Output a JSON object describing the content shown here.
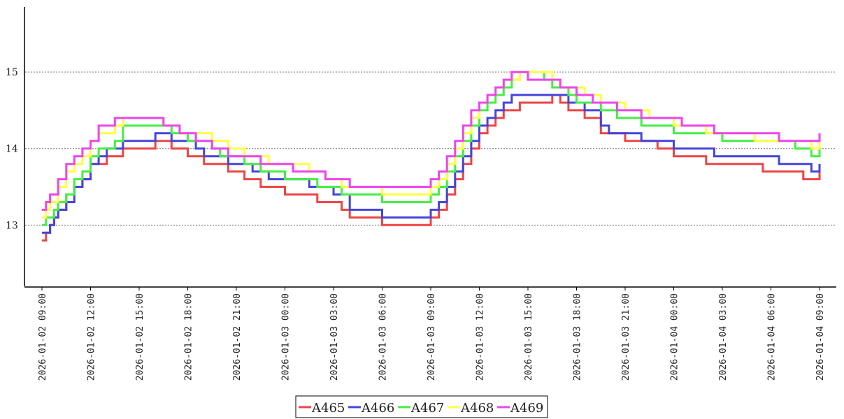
{
  "chart_data": {
    "type": "line",
    "step": true,
    "title": "",
    "xlabel": "",
    "ylabel": "",
    "ylim": [
      12.2,
      15.85
    ],
    "xlim": [
      "2026-01-02 09:00",
      "2026-01-04 09:00"
    ],
    "grid": "horizontal-dotted",
    "legend_position": "bottom-center",
    "x_ticks": [
      "2026-01-02 09:00",
      "2026-01-02 12:00",
      "2026-01-02 15:00",
      "2026-01-02 18:00",
      "2026-01-02 21:00",
      "2026-01-03 00:00",
      "2026-01-03 03:00",
      "2026-01-03 06:00",
      "2026-01-03 09:00",
      "2026-01-03 12:00",
      "2026-01-03 15:00",
      "2026-01-03 18:00",
      "2026-01-03 21:00",
      "2026-01-04 00:00",
      "2026-01-04 03:00",
      "2026-01-04 06:00",
      "2026-01-04 09:00"
    ],
    "y_ticks": [
      "13",
      "14",
      "15"
    ],
    "series": [
      {
        "name": "A465",
        "color": "#ee4444",
        "x": [
          "2026-01-02 09:00",
          "2026-01-02 09:15",
          "2026-01-02 09:30",
          "2026-01-02 09:45",
          "2026-01-02 10:00",
          "2026-01-02 10:30",
          "2026-01-02 11:00",
          "2026-01-02 11:30",
          "2026-01-02 12:00",
          "2026-01-02 13:00",
          "2026-01-02 14:00",
          "2026-01-02 16:00",
          "2026-01-02 17:00",
          "2026-01-02 18:00",
          "2026-01-02 19:00",
          "2026-01-02 20:30",
          "2026-01-02 21:30",
          "2026-01-02 22:30",
          "2026-01-03 00:00",
          "2026-01-03 01:00",
          "2026-01-03 02:00",
          "2026-01-03 03:30",
          "2026-01-03 04:00",
          "2026-01-03 06:00",
          "2026-01-03 08:30",
          "2026-01-03 09:00",
          "2026-01-03 09:30",
          "2026-01-03 10:00",
          "2026-01-03 10:30",
          "2026-01-03 11:00",
          "2026-01-03 11:30",
          "2026-01-03 12:00",
          "2026-01-03 12:30",
          "2026-01-03 13:00",
          "2026-01-03 13:30",
          "2026-01-03 14:30",
          "2026-01-03 16:30",
          "2026-01-03 17:00",
          "2026-01-03 17:30",
          "2026-01-03 18:30",
          "2026-01-03 19:30",
          "2026-01-03 21:00",
          "2026-01-03 23:00",
          "2026-01-04 00:00",
          "2026-01-04 02:00",
          "2026-01-04 04:00",
          "2026-01-04 05:30",
          "2026-01-04 07:30",
          "2026-01-04 08:00",
          "2026-01-04 09:00"
        ],
        "y": [
          12.8,
          12.9,
          13.0,
          13.1,
          13.2,
          13.4,
          13.5,
          13.6,
          13.8,
          13.9,
          14.0,
          14.1,
          14.0,
          13.9,
          13.8,
          13.7,
          13.6,
          13.5,
          13.4,
          13.4,
          13.3,
          13.2,
          13.1,
          13.0,
          13.0,
          13.1,
          13.2,
          13.4,
          13.6,
          13.8,
          14.0,
          14.2,
          14.3,
          14.4,
          14.5,
          14.6,
          14.7,
          14.6,
          14.5,
          14.4,
          14.2,
          14.1,
          14.0,
          13.9,
          13.8,
          13.8,
          13.7,
          13.7,
          13.6,
          13.7
        ]
      },
      {
        "name": "A466",
        "color": "#4444dd",
        "x": [
          "2026-01-02 09:00",
          "2026-01-02 09:30",
          "2026-01-02 09:45",
          "2026-01-02 10:00",
          "2026-01-02 10:30",
          "2026-01-02 11:00",
          "2026-01-02 11:30",
          "2026-01-02 12:00",
          "2026-01-02 12:30",
          "2026-01-02 13:00",
          "2026-01-02 14:00",
          "2026-01-02 16:00",
          "2026-01-02 17:00",
          "2026-01-02 18:30",
          "2026-01-02 19:00",
          "2026-01-02 20:30",
          "2026-01-02 22:00",
          "2026-01-02 23:00",
          "2026-01-03 00:00",
          "2026-01-03 01:30",
          "2026-01-03 02:00",
          "2026-01-03 03:00",
          "2026-01-03 04:00",
          "2026-01-03 06:00",
          "2026-01-03 08:30",
          "2026-01-03 09:00",
          "2026-01-03 09:30",
          "2026-01-03 10:00",
          "2026-01-03 10:30",
          "2026-01-03 11:00",
          "2026-01-03 11:30",
          "2026-01-03 12:00",
          "2026-01-03 12:30",
          "2026-01-03 13:00",
          "2026-01-03 13:30",
          "2026-01-03 14:00",
          "2026-01-03 17:00",
          "2026-01-03 17:30",
          "2026-01-03 18:30",
          "2026-01-03 19:30",
          "2026-01-03 20:00",
          "2026-01-03 22:00",
          "2026-01-04 00:00",
          "2026-01-04 02:30",
          "2026-01-04 03:00",
          "2026-01-04 06:30",
          "2026-01-04 08:30",
          "2026-01-04 09:00"
        ],
        "y": [
          12.9,
          13.0,
          13.1,
          13.2,
          13.3,
          13.5,
          13.6,
          13.8,
          13.9,
          14.0,
          14.1,
          14.2,
          14.1,
          14.0,
          13.9,
          13.8,
          13.7,
          13.6,
          13.6,
          13.5,
          13.5,
          13.4,
          13.2,
          13.1,
          13.1,
          13.2,
          13.3,
          13.5,
          13.7,
          13.9,
          14.1,
          14.3,
          14.4,
          14.5,
          14.6,
          14.7,
          14.7,
          14.6,
          14.5,
          14.3,
          14.2,
          14.1,
          14.0,
          13.9,
          13.9,
          13.8,
          13.7,
          13.8
        ]
      },
      {
        "name": "A467",
        "color": "#44ee44",
        "x": [
          "2026-01-02 09:00",
          "2026-01-02 09:15",
          "2026-01-02 09:45",
          "2026-01-02 10:00",
          "2026-01-02 10:30",
          "2026-01-02 11:00",
          "2026-01-02 11:30",
          "2026-01-02 12:00",
          "2026-01-02 12:30",
          "2026-01-02 13:30",
          "2026-01-02 14:00",
          "2026-01-02 16:00",
          "2026-01-02 17:00",
          "2026-01-02 18:00",
          "2026-01-02 19:30",
          "2026-01-02 20:00",
          "2026-01-02 21:30",
          "2026-01-02 22:30",
          "2026-01-03 00:00",
          "2026-01-03 01:00",
          "2026-01-03 02:00",
          "2026-01-03 03:30",
          "2026-01-03 05:00",
          "2026-01-03 06:00",
          "2026-01-03 08:30",
          "2026-01-03 09:00",
          "2026-01-03 09:30",
          "2026-01-03 10:00",
          "2026-01-03 10:30",
          "2026-01-03 11:00",
          "2026-01-03 11:30",
          "2026-01-03 12:00",
          "2026-01-03 12:30",
          "2026-01-03 13:00",
          "2026-01-03 13:30",
          "2026-01-03 14:00",
          "2026-01-03 14:30",
          "2026-01-03 15:00",
          "2026-01-03 16:00",
          "2026-01-03 16:30",
          "2026-01-03 17:30",
          "2026-01-03 18:00",
          "2026-01-03 19:30",
          "2026-01-03 20:30",
          "2026-01-03 22:00",
          "2026-01-04 00:00",
          "2026-01-04 03:00",
          "2026-01-04 07:30",
          "2026-01-04 08:30",
          "2026-01-04 09:00"
        ],
        "y": [
          13.0,
          13.1,
          13.2,
          13.3,
          13.4,
          13.6,
          13.7,
          13.9,
          14.0,
          14.1,
          14.3,
          14.3,
          14.2,
          14.1,
          14.0,
          13.9,
          13.8,
          13.7,
          13.6,
          13.6,
          13.5,
          13.4,
          13.4,
          13.3,
          13.3,
          13.4,
          13.5,
          13.7,
          13.9,
          14.1,
          14.3,
          14.5,
          14.6,
          14.7,
          14.8,
          14.9,
          15.0,
          15.0,
          14.9,
          14.8,
          14.7,
          14.6,
          14.5,
          14.4,
          14.3,
          14.2,
          14.1,
          14.0,
          13.9,
          14.0
        ]
      },
      {
        "name": "A468",
        "color": "#ffff44",
        "x": [
          "2026-01-02 09:00",
          "2026-01-02 09:15",
          "2026-01-02 09:30",
          "2026-01-02 10:00",
          "2026-01-02 10:30",
          "2026-01-02 11:00",
          "2026-01-02 11:30",
          "2026-01-02 12:00",
          "2026-01-02 12:30",
          "2026-01-02 13:30",
          "2026-01-02 14:00",
          "2026-01-02 15:00",
          "2026-01-02 16:30",
          "2026-01-02 17:30",
          "2026-01-02 18:00",
          "2026-01-02 19:30",
          "2026-01-02 20:30",
          "2026-01-02 21:30",
          "2026-01-02 23:00",
          "2026-01-03 00:00",
          "2026-01-03 01:30",
          "2026-01-03 02:30",
          "2026-01-03 03:30",
          "2026-01-03 06:00",
          "2026-01-03 08:30",
          "2026-01-03 09:00",
          "2026-01-03 09:30",
          "2026-01-03 10:00",
          "2026-01-03 10:30",
          "2026-01-03 11:00",
          "2026-01-03 11:30",
          "2026-01-03 12:00",
          "2026-01-03 12:30",
          "2026-01-03 13:00",
          "2026-01-03 13:30",
          "2026-01-03 14:00",
          "2026-01-03 14:30",
          "2026-01-03 15:30",
          "2026-01-03 16:30",
          "2026-01-03 17:00",
          "2026-01-03 17:30",
          "2026-01-03 18:30",
          "2026-01-03 19:30",
          "2026-01-03 21:00",
          "2026-01-03 22:30",
          "2026-01-04 00:00",
          "2026-01-04 02:00",
          "2026-01-04 03:30",
          "2026-01-04 05:00",
          "2026-01-04 08:30",
          "2026-01-04 09:00"
        ],
        "y": [
          13.1,
          13.2,
          13.3,
          13.5,
          13.7,
          13.8,
          13.9,
          14.1,
          14.2,
          14.3,
          14.4,
          14.4,
          14.3,
          14.2,
          14.2,
          14.1,
          14.0,
          13.9,
          13.8,
          13.8,
          13.7,
          13.6,
          13.5,
          13.4,
          13.4,
          13.5,
          13.6,
          13.8,
          14.0,
          14.2,
          14.4,
          14.6,
          14.7,
          14.8,
          14.9,
          14.9,
          15.0,
          15.0,
          14.9,
          14.8,
          14.8,
          14.7,
          14.6,
          14.5,
          14.4,
          14.3,
          14.2,
          14.2,
          14.1,
          14.0,
          14.1
        ]
      },
      {
        "name": "A469",
        "color": "#ee44ee",
        "x": [
          "2026-01-02 09:00",
          "2026-01-02 09:15",
          "2026-01-02 09:30",
          "2026-01-02 10:00",
          "2026-01-02 10:30",
          "2026-01-02 11:00",
          "2026-01-02 11:30",
          "2026-01-02 12:00",
          "2026-01-02 12:30",
          "2026-01-02 13:30",
          "2026-01-02 14:00",
          "2026-01-02 16:30",
          "2026-01-02 17:30",
          "2026-01-02 18:30",
          "2026-01-02 19:30",
          "2026-01-02 20:30",
          "2026-01-02 21:30",
          "2026-01-02 22:30",
          "2026-01-03 00:30",
          "2026-01-03 01:30",
          "2026-01-03 02:30",
          "2026-01-03 04:00",
          "2026-01-03 06:00",
          "2026-01-03 08:30",
          "2026-01-03 09:00",
          "2026-01-03 09:30",
          "2026-01-03 10:00",
          "2026-01-03 10:30",
          "2026-01-03 11:00",
          "2026-01-03 11:30",
          "2026-01-03 12:00",
          "2026-01-03 12:30",
          "2026-01-03 13:00",
          "2026-01-03 13:30",
          "2026-01-03 14:00",
          "2026-01-03 14:30",
          "2026-01-03 15:00",
          "2026-01-03 16:30",
          "2026-01-03 17:00",
          "2026-01-03 18:00",
          "2026-01-03 19:00",
          "2026-01-03 20:30",
          "2026-01-03 22:00",
          "2026-01-03 23:30",
          "2026-01-04 00:30",
          "2026-01-04 02:30",
          "2026-01-04 04:00",
          "2026-01-04 06:30",
          "2026-01-04 08:30",
          "2026-01-04 09:00"
        ],
        "y": [
          13.2,
          13.3,
          13.4,
          13.6,
          13.8,
          13.9,
          14.0,
          14.1,
          14.3,
          14.4,
          14.4,
          14.3,
          14.2,
          14.1,
          14.0,
          13.9,
          13.9,
          13.8,
          13.7,
          13.7,
          13.6,
          13.5,
          13.5,
          13.5,
          13.6,
          13.7,
          13.9,
          14.1,
          14.3,
          14.5,
          14.6,
          14.7,
          14.8,
          14.9,
          15.0,
          15.0,
          14.9,
          14.9,
          14.8,
          14.7,
          14.6,
          14.5,
          14.4,
          14.4,
          14.3,
          14.2,
          14.2,
          14.1,
          14.1,
          14.2
        ]
      }
    ]
  }
}
